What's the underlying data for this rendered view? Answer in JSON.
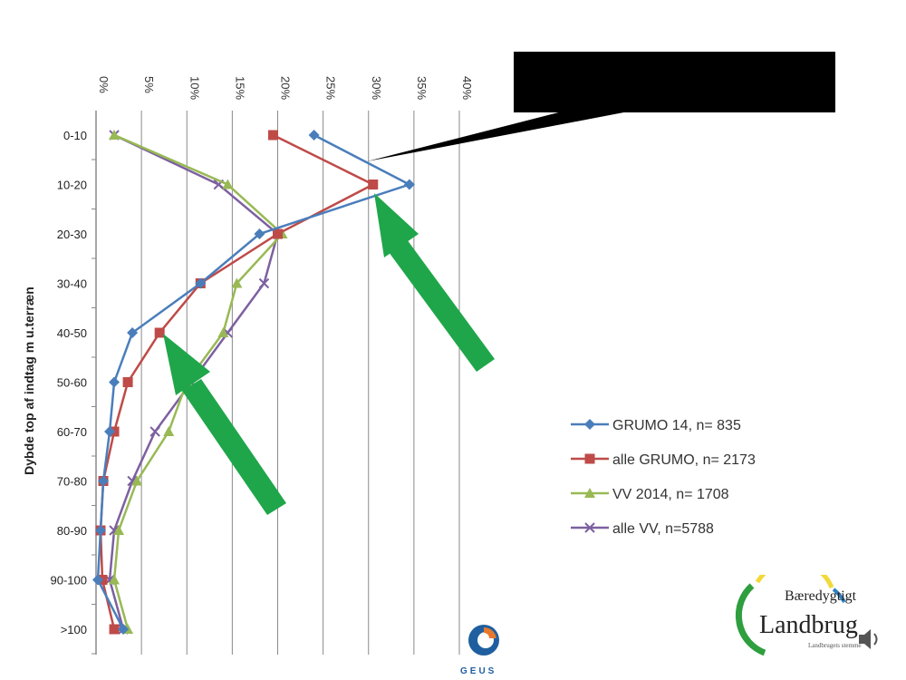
{
  "chart_data": {
    "type": "line",
    "orientation": "vertical-depth",
    "ylabel": "Dybde top af indtag m u.terræn",
    "x_ticks": [
      "0%",
      "5%",
      "10%",
      "15%",
      "20%",
      "25%",
      "30%",
      "35%",
      "40%"
    ],
    "xlim": [
      0,
      40
    ],
    "grid": "vertical",
    "legend_position": "bottom-right",
    "categories": [
      "0-10",
      "10-20",
      "20-30",
      "30-40",
      "40-50",
      "50-60",
      "60-70",
      "70-80",
      "80-90",
      "90-100",
      ">100"
    ],
    "series": [
      {
        "name": "GRUMO 14, n= 835",
        "color": "#4a7ebb",
        "marker": "diamond",
        "values": [
          24,
          34.5,
          18,
          11.5,
          4,
          2,
          1.5,
          0.8,
          0.5,
          0.2,
          3
        ]
      },
      {
        "name": "alle GRUMO, n= 2173",
        "color": "#be4b48",
        "marker": "square",
        "values": [
          19.5,
          30.5,
          20,
          11.5,
          7,
          3.5,
          2,
          0.8,
          0.5,
          0.7,
          2
        ]
      },
      {
        "name": "VV 2014, n= 1708",
        "color": "#98b954",
        "marker": "triangle",
        "values": [
          2,
          14.5,
          20.5,
          15.5,
          14,
          10,
          8,
          4.5,
          2.5,
          2,
          3.5
        ]
      },
      {
        "name": "alle VV, n=5788",
        "color": "#7d60a0",
        "marker": "x",
        "values": [
          2,
          13.5,
          20,
          18.5,
          14.5,
          10.5,
          6.5,
          4,
          2,
          1.5,
          3
        ]
      }
    ]
  },
  "colors": {
    "arrow": "#1fa64a",
    "callout": "#000000",
    "grid": "#8a8a8a"
  },
  "logos": {
    "landbrug_line1": "Bæredygtigt",
    "landbrug_line2": "Landbrug",
    "landbrug_tagline": "Landbrugets stemme",
    "geus": "GEUS"
  },
  "icons": {
    "speaker": "speaker-icon"
  }
}
